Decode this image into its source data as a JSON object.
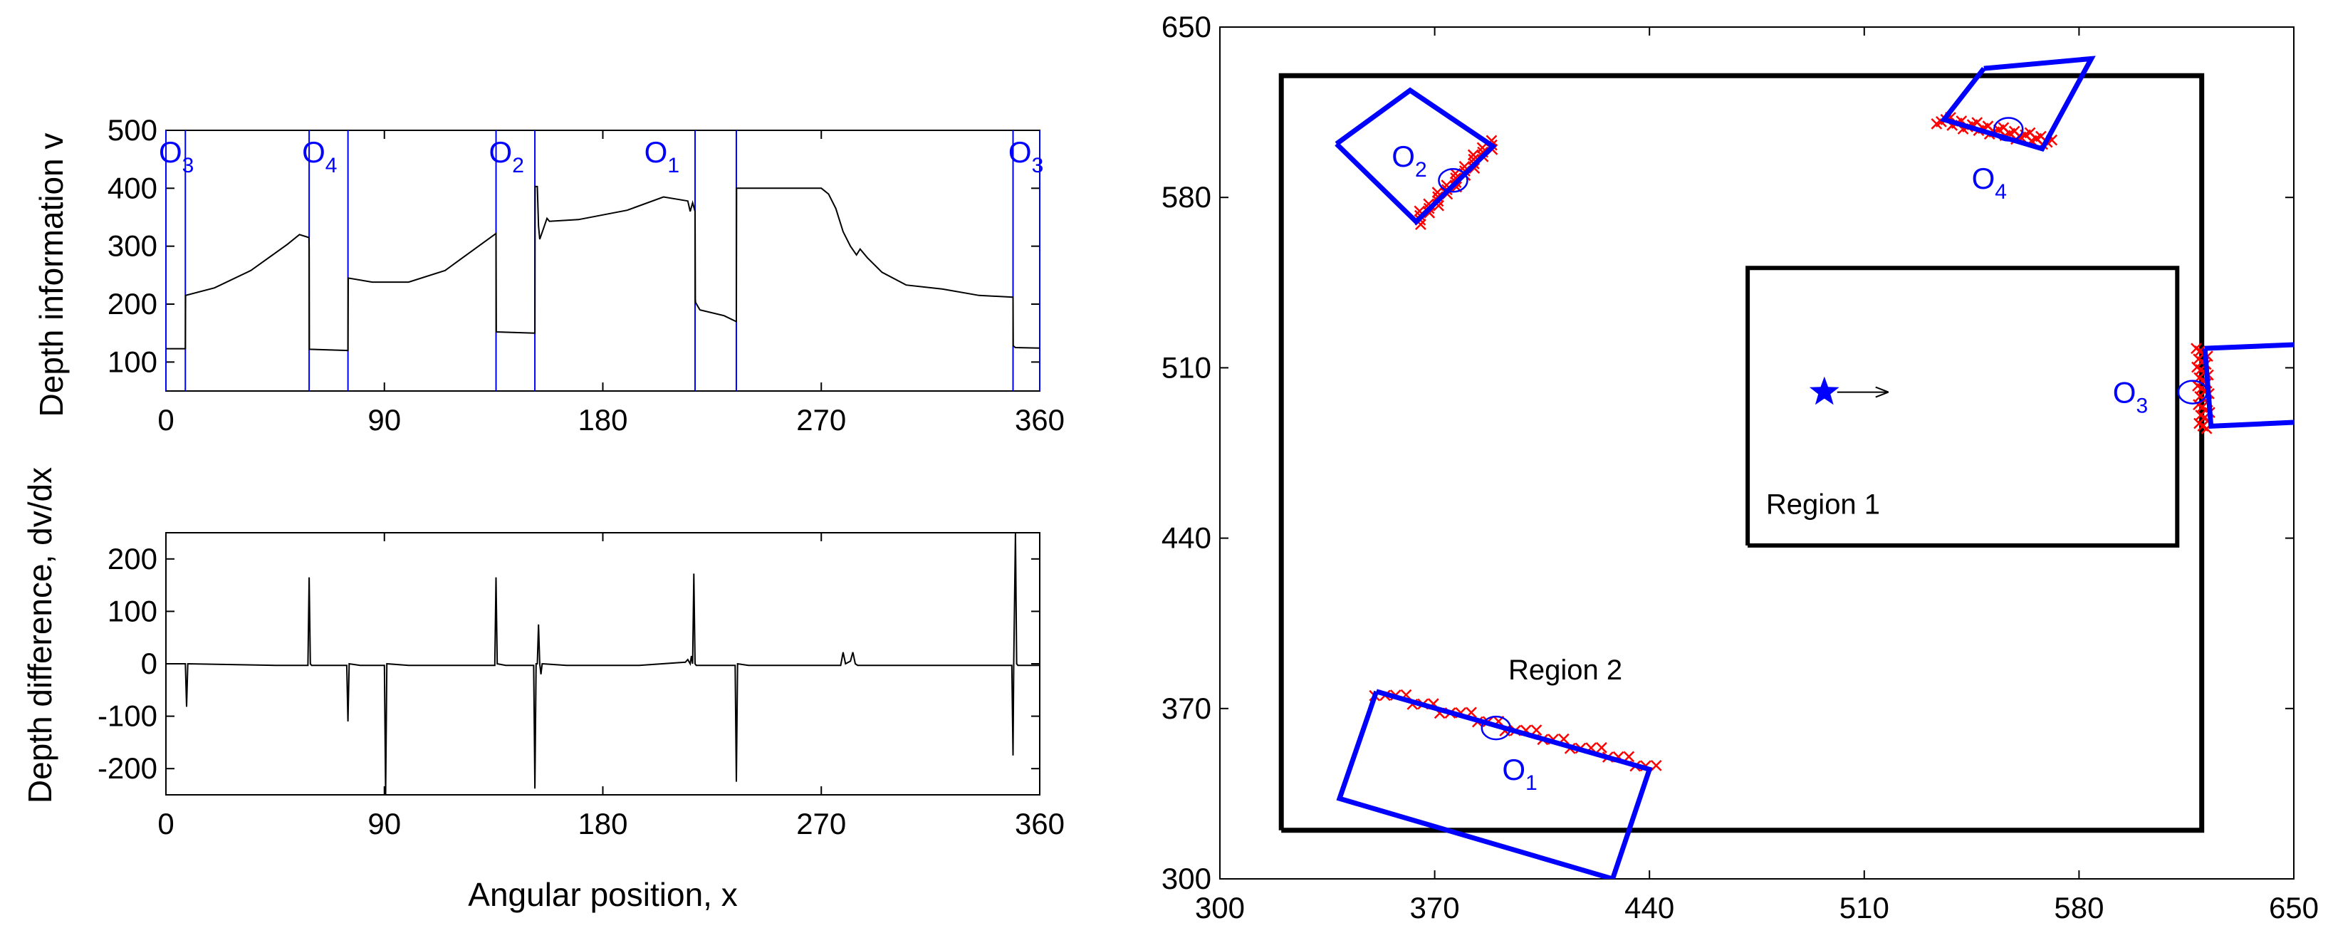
{
  "chart_data": [
    {
      "type": "line",
      "panel": "depth",
      "xlabel": "",
      "ylabel": "Depth information v",
      "xlim": [
        0,
        360
      ],
      "ylim": [
        50,
        500
      ],
      "xticks": [
        "0",
        "90",
        "180",
        "270",
        "360"
      ],
      "yticks": [
        "100",
        "200",
        "300",
        "400",
        "500"
      ],
      "grid": false,
      "line_color": "#000000",
      "boundary_color": "#0000ff",
      "boundaries_x": [
        0,
        8,
        59,
        75,
        136,
        152,
        218,
        235,
        349,
        360
      ],
      "object_labels": [
        {
          "main": "O",
          "sub": "3",
          "x": 0
        },
        {
          "main": "O",
          "sub": "4",
          "x": 59
        },
        {
          "main": "O",
          "sub": "2",
          "x": 136
        },
        {
          "main": "O",
          "sub": "1",
          "x": 200
        },
        {
          "main": "O",
          "sub": "3",
          "x": 350
        }
      ],
      "series": [
        {
          "x": [
            0,
            7.9,
            8,
            8.1,
            20,
            35,
            50,
            55,
            58.9,
            59,
            59.1,
            74.9,
            75,
            75.1,
            85,
            100,
            115,
            136,
            136.1,
            151.9,
            152,
            152.1,
            153,
            153.5,
            154,
            155.5,
            157,
            158,
            170,
            190,
            205,
            215,
            216,
            217,
            218,
            218.1,
            218.2,
            220,
            230,
            234.9,
            235,
            235.1,
            240,
            270,
            273,
            276,
            279,
            282,
            284.5,
            286,
            289,
            295,
            305,
            320,
            335,
            348.9,
            349,
            349.1,
            350,
            360
          ],
          "y": [
            123,
            123,
            123,
            215,
            228,
            258,
            303,
            320,
            315,
            296,
            122,
            120,
            120,
            245,
            238,
            238,
            258,
            322,
            152,
            150,
            150,
            403,
            403,
            335,
            312,
            330,
            348,
            343,
            346,
            362,
            385,
            378,
            360,
            375,
            360,
            208,
            203,
            190,
            180,
            170,
            170,
            400,
            400,
            400,
            390,
            365,
            325,
            300,
            285,
            295,
            280,
            255,
            233,
            226,
            215,
            212,
            212,
            128,
            125,
            124
          ]
        }
      ]
    },
    {
      "type": "line",
      "panel": "difference",
      "xlabel": "Angular position, x",
      "ylabel": "Depth difference, dv/dx",
      "xlim": [
        0,
        360
      ],
      "ylim": [
        -250,
        250
      ],
      "xticks": [
        "0",
        "90",
        "180",
        "270",
        "360"
      ],
      "yticks": [
        "-200",
        "-100",
        "0",
        "100",
        "200"
      ],
      "grid": false,
      "line_color": "#000000",
      "series": [
        {
          "x": [
            0,
            8,
            8.5,
            9,
            45,
            55,
            58.5,
            59,
            59.5,
            60,
            74.5,
            75,
            75.5,
            80,
            90,
            90.5,
            91,
            100,
            135.5,
            136,
            136.5,
            140,
            151.5,
            152,
            152.5,
            153,
            153.5,
            154,
            154.5,
            155,
            165,
            195,
            214,
            215,
            216,
            216.5,
            217,
            217.5,
            218,
            218.5,
            219,
            230,
            234.5,
            235,
            235.5,
            240,
            270,
            278,
            279,
            280,
            282,
            283,
            284,
            285,
            290,
            310,
            340,
            348.5,
            349,
            349.3,
            350,
            350.5,
            351,
            360
          ],
          "y": [
            0,
            0,
            -82,
            0,
            -3,
            -3,
            -3,
            165,
            0,
            -3,
            -3,
            -110,
            0,
            -3,
            -3,
            -250,
            0,
            -3,
            -3,
            165,
            0,
            -3,
            -3,
            -238,
            0,
            0,
            75,
            0,
            -20,
            0,
            -3,
            -3,
            3,
            8,
            0,
            15,
            0,
            172,
            0,
            -3,
            -3,
            -3,
            -3,
            -225,
            0,
            -3,
            -3,
            -3,
            22,
            0,
            5,
            22,
            0,
            -3,
            -3,
            -3,
            -3,
            -3,
            -175,
            0,
            250,
            0,
            -3,
            -3
          ]
        }
      ]
    },
    {
      "type": "scatter",
      "panel": "map",
      "xlabel": "",
      "ylabel": "",
      "xlim": [
        300,
        650
      ],
      "ylim": [
        300,
        650
      ],
      "xticks": [
        "300",
        "370",
        "440",
        "510",
        "580",
        "650"
      ],
      "yticks": [
        "300",
        "370",
        "440",
        "510",
        "580",
        "650"
      ],
      "grid": false,
      "region_labels": [
        "Region 1",
        "Region 2"
      ],
      "outer_boundary": {
        "x": [
          320,
          620,
          620,
          320,
          320
        ],
        "y": [
          320,
          320,
          630,
          630,
          320
        ]
      },
      "region1_box": {
        "x": [
          472,
          612,
          612,
          472,
          472
        ],
        "y": [
          437,
          437,
          551,
          551,
          437
        ]
      },
      "robot": {
        "x": 497,
        "y": 500,
        "heading_deg": 0,
        "color": "#0000ff"
      },
      "obstacles": [
        {
          "label_main": "O",
          "label_sub": "1",
          "center": [
            390,
            362
          ],
          "label_at": [
            392,
            345
          ],
          "polygon": [
            [
              351,
              377
            ],
            [
              440,
              345
            ],
            [
              428,
              300
            ],
            [
              339,
              333
            ],
            [
              351,
              377
            ]
          ],
          "scan_points": {
            "from": [
              351,
              377
            ],
            "to": [
              442,
              346
            ]
          }
        },
        {
          "label_main": "O",
          "label_sub": "2",
          "center": [
            376,
            587
          ],
          "label_at": [
            356,
            597
          ],
          "polygon": [
            [
              338,
              602
            ],
            [
              364,
              570
            ],
            [
              389,
              601
            ],
            [
              362,
              624
            ],
            [
              338,
              602
            ]
          ],
          "scan_points": {
            "from": [
              364,
              570
            ],
            "to": [
              389,
              603
            ]
          }
        },
        {
          "label_main": "O",
          "label_sub": "3",
          "center": [
            617,
            500
          ],
          "label_at": [
            591,
            500
          ],
          "polygon": [
            [
              621,
              518
            ],
            [
              660,
              520
            ],
            [
              657,
              488
            ],
            [
              623,
              486
            ],
            [
              621,
              518
            ]
          ],
          "scan_points": {
            "from": [
              620,
              518
            ],
            "to": [
              621,
              485
            ]
          }
        },
        {
          "label_main": "O",
          "label_sub": "4",
          "center": [
            557,
            608
          ],
          "label_at": [
            545,
            588
          ],
          "polygon": [
            [
              549,
              633
            ],
            [
              584,
              637
            ],
            [
              568,
              600
            ],
            [
              536,
              612
            ],
            [
              549,
              633
            ]
          ],
          "scan_points": {
            "from": [
              534,
              612
            ],
            "to": [
              571,
              603
            ]
          }
        }
      ],
      "colors": {
        "walls": "#000000",
        "obstacles": "#0000ff",
        "scan": "#ff0000",
        "centers": "#0000ff"
      }
    }
  ]
}
